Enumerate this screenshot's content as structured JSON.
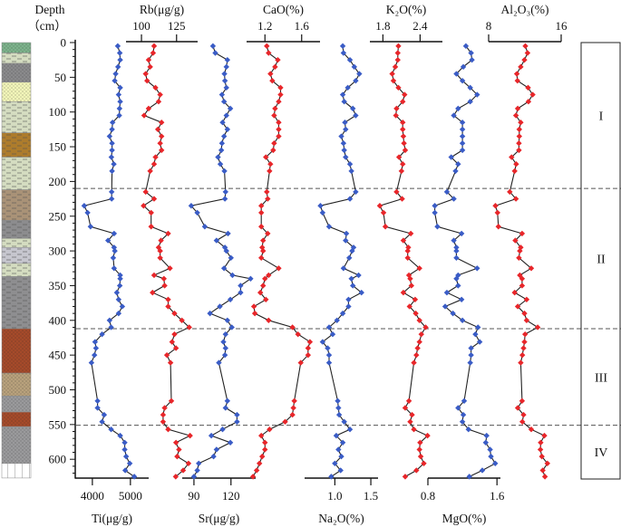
{
  "chart_data": {
    "type": "line",
    "orientation": "depth-profile",
    "depth_axis": {
      "title": "Depth",
      "unit": "（cm）",
      "ticks": [
        0,
        50,
        100,
        150,
        200,
        250,
        300,
        350,
        400,
        450,
        500,
        550,
        600
      ],
      "minor_step": 10,
      "range": [
        -4,
        628
      ]
    },
    "depths": [
      5,
      15,
      25,
      35,
      45,
      55,
      65,
      75,
      85,
      95,
      105,
      115,
      125,
      135,
      145,
      155,
      165,
      175,
      185,
      215,
      225,
      235,
      245,
      265,
      275,
      285,
      295,
      300,
      310,
      325,
      335,
      340,
      350,
      360,
      370,
      380,
      390,
      400,
      410,
      420,
      431,
      440,
      450,
      461,
      516,
      526,
      536,
      546,
      557,
      566,
      576,
      586,
      596,
      606,
      616,
      625
    ],
    "series": [
      {
        "name": "Ti(μg/g)",
        "axis": "bottom",
        "color": "#3a5cc6",
        "xlim": [
          3550,
          5480
        ],
        "ticks": [
          4000,
          5000
        ],
        "values": [
          4667,
          4721,
          4731,
          4674,
          4612,
          4588,
          4731,
          4690,
          4731,
          4714,
          4707,
          4531,
          4517,
          4452,
          4517,
          4517,
          4500,
          4564,
          4517,
          4507,
          4507,
          3786,
          3874,
          3952,
          4571,
          4412,
          4571,
          4590,
          4548,
          4571,
          4731,
          4731,
          4721,
          4643,
          4690,
          4786,
          4690,
          4452,
          4493,
          4255,
          4071,
          4095,
          4055,
          3976,
          4136,
          4136,
          4310,
          4255,
          4493,
          4731,
          4850,
          4850,
          4888,
          4983,
          4864,
          5102
        ]
      },
      {
        "name": "Rb(μg/g)",
        "axis": "top",
        "color": "#e8262a",
        "xlim": [
          89,
          140
        ],
        "ticks": [
          100,
          125
        ],
        "values": [
          109,
          108.3,
          105.1,
          106.2,
          103,
          104,
          110,
          113.3,
          112.2,
          105.1,
          101.9,
          114.3,
          111.7,
          114.3,
          113.3,
          114.3,
          110,
          109,
          106.2,
          103,
          109,
          101.5,
          106.9,
          106.9,
          119,
          113.9,
          112.2,
          113.3,
          113.3,
          120.3,
          109,
          116,
          116.5,
          107.9,
          119,
          119,
          123.5,
          128.8,
          134,
          123.5,
          121.8,
          124.6,
          118.1,
          120.7,
          121.3,
          116.5,
          115.4,
          115.4,
          119,
          134.6,
          124.6,
          126.7,
          125.4,
          133.5,
          129.7,
          124.4
        ]
      },
      {
        "name": "Sr(μg/g)",
        "axis": "bottom",
        "color": "#3a5cc6",
        "xlim": [
          80.5,
          140
        ],
        "ticks": [
          90,
          120
        ],
        "values": [
          105.4,
          107.3,
          117.1,
          116.3,
          114.7,
          115.1,
          116.3,
          112.7,
          114.4,
          119.5,
          116.3,
          113.2,
          117.1,
          114.4,
          112.7,
          112.2,
          109.5,
          111.4,
          114.7,
          115.6,
          115.1,
          87.8,
          92.7,
          98.8,
          117.6,
          108.3,
          115.1,
          116.3,
          120,
          114.4,
          121.2,
          135.9,
          127.8,
          127.8,
          119.5,
          111,
          103,
          117.1,
          120.7,
          115.6,
          113.9,
          115.6,
          115.1,
          110.2,
          117.1,
          115.6,
          124.9,
          124.9,
          113.2,
          104.1,
          119.5,
          108.3,
          105.9,
          93.9,
          92.7,
          90
        ]
      },
      {
        "name": "CaO(%)",
        "axis": "top",
        "color": "#e8262a",
        "xlim": [
          1.0,
          1.8
        ],
        "ticks": [
          1.2,
          1.6
        ],
        "values": [
          1.22,
          1.24,
          1.34,
          1.31,
          1.26,
          1.28,
          1.37,
          1.37,
          1.35,
          1.31,
          1.3,
          1.35,
          1.35,
          1.35,
          1.3,
          1.29,
          1.21,
          1.26,
          1.25,
          1.22,
          1.23,
          1.16,
          1.16,
          1.16,
          1.23,
          1.18,
          1.17,
          1.18,
          1.16,
          1.35,
          1.24,
          1.2,
          1.18,
          1.15,
          1.21,
          1.08,
          1.09,
          1.24,
          1.5,
          1.56,
          1.69,
          1.67,
          1.67,
          1.59,
          1.52,
          1.51,
          1.5,
          1.42,
          1.25,
          1.16,
          1.2,
          1.2,
          1.17,
          1.14,
          1.11,
          1.07
        ]
      },
      {
        "name": "Na₂O(%)",
        "axis": "bottom",
        "color": "#3a5cc6",
        "xlim": [
          0.58,
          1.6
        ],
        "ticks": [
          1.0,
          1.5
        ],
        "values": [
          1.11,
          1.12,
          1.21,
          1.27,
          1.34,
          1.29,
          1.18,
          1.11,
          1.13,
          1.25,
          1.29,
          1.14,
          1.15,
          1.09,
          1.12,
          1.13,
          1.15,
          1.21,
          1.23,
          1.29,
          1.21,
          0.8,
          0.83,
          0.92,
          1.16,
          1.15,
          1.26,
          1.24,
          1.2,
          1.12,
          1.33,
          1.23,
          1.25,
          1.37,
          1.19,
          1.19,
          1.11,
          1.03,
          0.92,
          0.97,
          0.83,
          0.9,
          0.92,
          0.92,
          1.04,
          1.05,
          1.06,
          1.13,
          1.21,
          1.02,
          1.11,
          1.05,
          1.09,
          1.0,
          1.08,
          0.95
        ]
      },
      {
        "name": "K₂O(%)",
        "axis": "top",
        "color": "#e8262a",
        "xlim": [
          1.59,
          2.76
        ],
        "ticks": [
          1.8,
          2.4
        ],
        "values": [
          2.05,
          2.04,
          2.04,
          2.0,
          1.95,
          1.97,
          2.05,
          2.15,
          2.12,
          2.02,
          2.01,
          2.12,
          2.12,
          2.13,
          2.14,
          2.16,
          2.06,
          2.12,
          2.1,
          2.02,
          2.11,
          1.75,
          1.81,
          1.84,
          2.25,
          2.13,
          2.21,
          2.2,
          2.2,
          2.39,
          2.22,
          2.24,
          2.26,
          2.13,
          2.32,
          2.23,
          2.33,
          2.39,
          2.49,
          2.42,
          2.39,
          2.36,
          2.34,
          2.3,
          2.22,
          2.16,
          2.27,
          2.24,
          2.3,
          2.52,
          2.4,
          2.39,
          2.41,
          2.46,
          2.34,
          2.16
        ]
      },
      {
        "name": "MgO(%)",
        "axis": "bottom",
        "color": "#3a5cc6",
        "xlim": [
          0.8,
          1.64
        ],
        "ticks": [
          0.8,
          1.6
        ],
        "values": [
          1.24,
          1.3,
          1.31,
          1.21,
          1.13,
          1.2,
          1.29,
          1.37,
          1.29,
          1.15,
          1.1,
          1.2,
          1.2,
          1.2,
          1.2,
          1.2,
          1.07,
          1.15,
          1.12,
          1.02,
          1.1,
          0.88,
          0.88,
          0.91,
          1.19,
          1.1,
          1.13,
          1.13,
          1.13,
          1.37,
          1.15,
          1.13,
          1.15,
          1.02,
          1.19,
          1.0,
          1.09,
          1.2,
          1.38,
          1.35,
          1.4,
          1.3,
          1.3,
          1.29,
          1.22,
          1.15,
          1.21,
          1.2,
          1.27,
          1.48,
          1.47,
          1.52,
          1.53,
          1.58,
          1.43,
          1.28
        ]
      },
      {
        "name": "Al₂O₃(%)",
        "axis": "top",
        "color": "#e8262a",
        "xlim": [
          8,
          16
        ],
        "ticks": [
          8,
          16
        ],
        "values": [
          12.05,
          12.29,
          11.95,
          11.54,
          11.11,
          11.18,
          12.35,
          12.86,
          12.39,
          11.21,
          11.01,
          11.54,
          11.38,
          11.38,
          11.34,
          11.34,
          10.53,
          11.04,
          10.87,
          10.33,
          11.01,
          8.75,
          8.98,
          9.08,
          11.69,
          10.94,
          11.54,
          11.44,
          11.34,
          12.7,
          11.44,
          11.69,
          11.69,
          10.87,
          12.19,
          11.21,
          11.95,
          12.19,
          13.41,
          12.02,
          11.95,
          11.85,
          11.72,
          11.54,
          11.69,
          11.21,
          11.85,
          11.72,
          12.7,
          14.15,
          13.74,
          13.71,
          13.87,
          14.48,
          13.97,
          14.21
        ]
      }
    ],
    "zone_boundaries": [
      210,
      412,
      551
    ],
    "zones": [
      {
        "label": "I",
        "top": 0,
        "bottom": 210
      },
      {
        "label": "II",
        "top": 210,
        "bottom": 412
      },
      {
        "label": "III",
        "top": 412,
        "bottom": 551
      },
      {
        "label": "IV",
        "top": 551,
        "bottom": 628
      }
    ],
    "lithology": [
      {
        "top": 0,
        "bottom": 15,
        "color": "#7db38c",
        "pattern": "dots"
      },
      {
        "top": 15,
        "bottom": 30,
        "color": "#d4dcc0",
        "pattern": "dashes"
      },
      {
        "top": 30,
        "bottom": 57,
        "color": "#8a8a8c",
        "pattern": "dots"
      },
      {
        "top": 57,
        "bottom": 85,
        "color": "#f2f5b9",
        "pattern": "dots"
      },
      {
        "top": 85,
        "bottom": 130,
        "color": "#d4dcc0",
        "pattern": "dashes"
      },
      {
        "top": 130,
        "bottom": 165,
        "color": "#ad7c2c",
        "pattern": "dashes"
      },
      {
        "top": 165,
        "bottom": 212,
        "color": "#d4dcc0",
        "pattern": "dashes"
      },
      {
        "top": 212,
        "bottom": 256,
        "color": "#a99277",
        "pattern": "dashes"
      },
      {
        "top": 256,
        "bottom": 282,
        "color": "#8c8c8e",
        "pattern": "dashes"
      },
      {
        "top": 282,
        "bottom": 295,
        "color": "#d4dcc0",
        "pattern": "dashes"
      },
      {
        "top": 295,
        "bottom": 318,
        "color": "#c6c6ce",
        "pattern": "dashes"
      },
      {
        "top": 318,
        "bottom": 337,
        "color": "#d4dcc0",
        "pattern": "dashes"
      },
      {
        "top": 337,
        "bottom": 412,
        "color": "#8e8e90",
        "pattern": "dashes"
      },
      {
        "top": 412,
        "bottom": 476,
        "color": "#a54a2a",
        "pattern": "dots"
      },
      {
        "top": 476,
        "bottom": 509,
        "color": "#b8a17c",
        "pattern": "dots"
      },
      {
        "top": 509,
        "bottom": 532,
        "color": "#9a9a9c",
        "pattern": "dots"
      },
      {
        "top": 532,
        "bottom": 553,
        "color": "#a54a2a",
        "pattern": "dots"
      },
      {
        "top": 553,
        "bottom": 606,
        "color": "#9a9a9c",
        "pattern": "dots"
      },
      {
        "top": 606,
        "bottom": 627,
        "color": "#ffffff",
        "pattern": "grid"
      }
    ]
  }
}
